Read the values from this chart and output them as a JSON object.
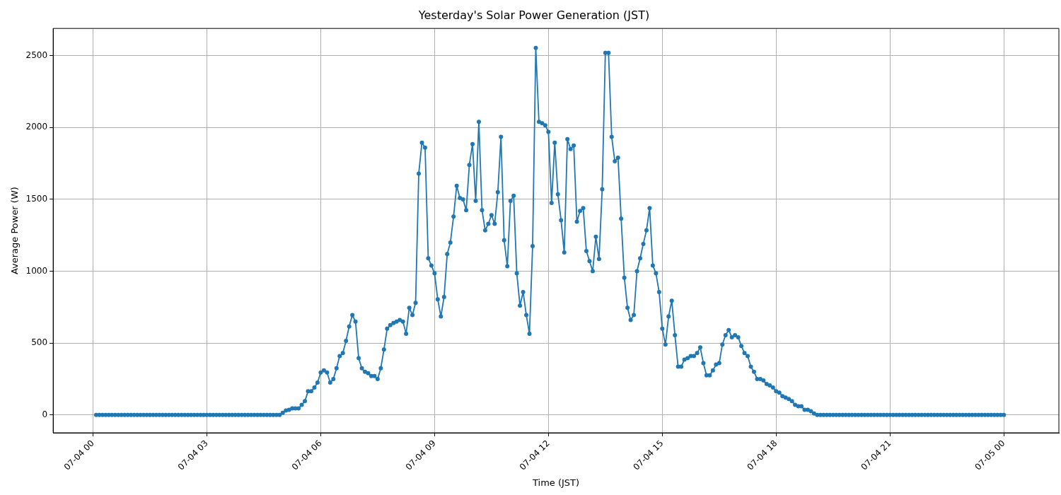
{
  "chart_data": {
    "type": "line",
    "title": "Yesterday's Solar Power Generation (JST)",
    "xlabel": "Time (JST)",
    "ylabel": "Average Power (W)",
    "x": [
      "--07-04T00:05",
      "--07-04T00:10",
      "--07-04T00:15",
      "--07-04T00:20",
      "--07-04T00:25",
      "--07-04T00:30",
      "--07-04T00:35",
      "--07-04T00:40",
      "--07-04T00:45",
      "--07-04T00:50",
      "--07-04T00:55",
      "--07-04T01:00",
      "--07-04T01:05",
      "--07-04T01:10",
      "--07-04T01:15",
      "--07-04T01:20",
      "--07-04T01:25",
      "--07-04T01:30",
      "--07-04T01:35",
      "--07-04T01:40",
      "--07-04T01:45",
      "--07-04T01:50",
      "--07-04T01:55",
      "--07-04T02:00",
      "--07-04T02:05",
      "--07-04T02:10",
      "--07-04T02:15",
      "--07-04T02:20",
      "--07-04T02:25",
      "--07-04T02:30",
      "--07-04T02:35",
      "--07-04T02:40",
      "--07-04T02:45",
      "--07-04T02:50",
      "--07-04T02:55",
      "--07-04T03:00",
      "--07-04T03:05",
      "--07-04T03:10",
      "--07-04T03:15",
      "--07-04T03:20",
      "--07-04T03:25",
      "--07-04T03:30",
      "--07-04T03:35",
      "--07-04T03:40",
      "--07-04T03:45",
      "--07-04T03:50",
      "--07-04T03:55",
      "--07-04T04:00",
      "--07-04T04:05",
      "--07-04T04:10",
      "--07-04T04:15",
      "--07-04T04:20",
      "--07-04T04:25",
      "--07-04T04:30",
      "--07-04T04:35",
      "--07-04T04:40",
      "--07-04T04:45",
      "--07-04T04:50",
      "--07-04T04:55",
      "--07-04T05:00",
      "--07-04T05:05",
      "--07-04T05:10",
      "--07-04T05:15",
      "--07-04T05:20",
      "--07-04T05:25",
      "--07-04T05:30",
      "--07-04T05:35",
      "--07-04T05:40",
      "--07-04T05:45",
      "--07-04T05:50",
      "--07-04T05:55",
      "--07-04T06:00",
      "--07-04T06:05",
      "--07-04T06:10",
      "--07-04T06:15",
      "--07-04T06:20",
      "--07-04T06:25",
      "--07-04T06:30",
      "--07-04T06:35",
      "--07-04T06:40",
      "--07-04T06:45",
      "--07-04T06:50",
      "--07-04T06:55",
      "--07-04T07:00",
      "--07-04T07:05",
      "--07-04T07:10",
      "--07-04T07:15",
      "--07-04T07:20",
      "--07-04T07:25",
      "--07-04T07:30",
      "--07-04T07:35",
      "--07-04T07:40",
      "--07-04T07:45",
      "--07-04T07:50",
      "--07-04T07:55",
      "--07-04T08:00",
      "--07-04T08:05",
      "--07-04T08:10",
      "--07-04T08:15",
      "--07-04T08:20",
      "--07-04T08:25",
      "--07-04T08:30",
      "--07-04T08:35",
      "--07-04T08:40",
      "--07-04T08:45",
      "--07-04T08:50",
      "--07-04T08:55",
      "--07-04T09:00",
      "--07-04T09:05",
      "--07-04T09:10",
      "--07-04T09:15",
      "--07-04T09:20",
      "--07-04T09:25",
      "--07-04T09:30",
      "--07-04T09:35",
      "--07-04T09:40",
      "--07-04T09:45",
      "--07-04T09:50",
      "--07-04T09:55",
      "--07-04T10:00",
      "--07-04T10:05",
      "--07-04T10:10",
      "--07-04T10:15",
      "--07-04T10:20",
      "--07-04T10:25",
      "--07-04T10:30",
      "--07-04T10:35",
      "--07-04T10:40",
      "--07-04T10:45",
      "--07-04T10:50",
      "--07-04T10:55",
      "--07-04T11:00",
      "--07-04T11:05",
      "--07-04T11:10",
      "--07-04T11:15",
      "--07-04T11:20",
      "--07-04T11:25",
      "--07-04T11:30",
      "--07-04T11:35",
      "--07-04T11:40",
      "--07-04T11:45",
      "--07-04T11:50",
      "--07-04T11:55",
      "--07-04T12:00",
      "--07-04T12:05",
      "--07-04T12:10",
      "--07-04T12:15",
      "--07-04T12:20",
      "--07-04T12:25",
      "--07-04T12:30",
      "--07-04T12:35",
      "--07-04T12:40",
      "--07-04T12:45",
      "--07-04T12:50",
      "--07-04T12:55",
      "--07-04T13:00",
      "--07-04T13:05",
      "--07-04T13:10",
      "--07-04T13:15",
      "--07-04T13:20",
      "--07-04T13:25",
      "--07-04T13:30",
      "--07-04T13:35",
      "--07-04T13:40",
      "--07-04T13:45",
      "--07-04T13:50",
      "--07-04T13:55",
      "--07-04T14:00",
      "--07-04T14:05",
      "--07-04T14:10",
      "--07-04T14:15",
      "--07-04T14:20",
      "--07-04T14:25",
      "--07-04T14:30",
      "--07-04T14:35",
      "--07-04T14:40",
      "--07-04T14:45",
      "--07-04T14:50",
      "--07-04T14:55",
      "--07-04T15:00",
      "--07-04T15:05",
      "--07-04T15:10",
      "--07-04T15:15",
      "--07-04T15:20",
      "--07-04T15:25",
      "--07-04T15:30",
      "--07-04T15:35",
      "--07-04T15:40",
      "--07-04T15:45",
      "--07-04T15:50",
      "--07-04T15:55",
      "--07-04T16:00",
      "--07-04T16:05",
      "--07-04T16:10",
      "--07-04T16:15",
      "--07-04T16:20",
      "--07-04T16:25",
      "--07-04T16:30",
      "--07-04T16:35",
      "--07-04T16:40",
      "--07-04T16:45",
      "--07-04T16:50",
      "--07-04T16:55",
      "--07-04T17:00",
      "--07-04T17:05",
      "--07-04T17:10",
      "--07-04T17:15",
      "--07-04T17:20",
      "--07-04T17:25",
      "--07-04T17:30",
      "--07-04T17:35",
      "--07-04T17:40",
      "--07-04T17:45",
      "--07-04T17:50",
      "--07-04T17:55",
      "--07-04T18:00",
      "--07-04T18:05",
      "--07-04T18:10",
      "--07-04T18:15",
      "--07-04T18:20",
      "--07-04T18:25",
      "--07-04T18:30",
      "--07-04T18:35",
      "--07-04T18:40",
      "--07-04T18:45",
      "--07-04T18:50",
      "--07-04T18:55",
      "--07-04T19:00",
      "--07-04T19:05",
      "--07-04T19:10",
      "--07-04T19:15",
      "--07-04T19:20",
      "--07-04T19:25",
      "--07-04T19:30",
      "--07-04T19:35",
      "--07-04T19:40",
      "--07-04T19:45",
      "--07-04T19:50",
      "--07-04T19:55",
      "--07-04T20:00",
      "--07-04T20:05",
      "--07-04T20:10",
      "--07-04T20:15",
      "--07-04T20:20",
      "--07-04T20:25",
      "--07-04T20:30",
      "--07-04T20:35",
      "--07-04T20:40",
      "--07-04T20:45",
      "--07-04T20:50",
      "--07-04T20:55",
      "--07-04T21:00",
      "--07-04T21:05",
      "--07-04T21:10",
      "--07-04T21:15",
      "--07-04T21:20",
      "--07-04T21:25",
      "--07-04T21:30",
      "--07-04T21:35",
      "--07-04T21:40",
      "--07-04T21:45",
      "--07-04T21:50",
      "--07-04T21:55",
      "--07-04T22:00",
      "--07-04T22:05",
      "--07-04T22:10",
      "--07-04T22:15",
      "--07-04T22:20",
      "--07-04T22:25",
      "--07-04T22:30",
      "--07-04T22:35",
      "--07-04T22:40",
      "--07-04T22:45",
      "--07-04T22:50",
      "--07-04T22:55",
      "--07-04T23:00",
      "--07-04T23:05",
      "--07-04T23:10",
      "--07-04T23:15",
      "--07-04T23:20",
      "--07-04T23:25",
      "--07-04T23:30",
      "--07-04T23:35",
      "--07-04T23:40",
      "--07-04T23:45",
      "--07-04T23:50",
      "--07-04T23:55",
      "--07-05T00:00"
    ],
    "series": [
      {
        "color": "#1f77b4",
        "values": [
          0,
          0,
          0,
          0,
          0,
          0,
          0,
          0,
          0,
          0,
          0,
          0,
          0,
          0,
          0,
          0,
          0,
          0,
          0,
          0,
          0,
          0,
          0,
          0,
          0,
          0,
          0,
          0,
          0,
          0,
          0,
          0,
          0,
          0,
          0,
          0,
          0,
          0,
          0,
          0,
          0,
          0,
          0,
          0,
          0,
          0,
          0,
          0,
          0,
          0,
          0,
          0,
          0,
          0,
          0,
          0,
          0,
          0,
          0,
          15,
          30,
          35,
          45,
          45,
          45,
          70,
          95,
          165,
          165,
          190,
          225,
          295,
          310,
          295,
          225,
          250,
          325,
          410,
          430,
          515,
          615,
          695,
          650,
          395,
          325,
          300,
          290,
          270,
          270,
          250,
          325,
          455,
          600,
          625,
          640,
          650,
          660,
          650,
          565,
          745,
          695,
          780,
          1680,
          1895,
          1860,
          1090,
          1040,
          985,
          805,
          685,
          820,
          1120,
          1200,
          1380,
          1595,
          1510,
          1500,
          1425,
          1740,
          1885,
          1490,
          2040,
          1425,
          1285,
          1330,
          1390,
          1330,
          1550,
          1935,
          1215,
          1035,
          1490,
          1525,
          985,
          760,
          855,
          695,
          565,
          1175,
          2555,
          2040,
          2030,
          2015,
          1970,
          1475,
          1895,
          1535,
          1355,
          1130,
          1920,
          1850,
          1875,
          1345,
          1420,
          1440,
          1140,
          1070,
          1000,
          1240,
          1085,
          1570,
          2520,
          2520,
          1935,
          1765,
          1790,
          1365,
          955,
          745,
          660,
          695,
          1000,
          1090,
          1190,
          1285,
          1440,
          1040,
          985,
          855,
          600,
          490,
          685,
          795,
          555,
          335,
          335,
          385,
          395,
          410,
          410,
          430,
          470,
          360,
          275,
          275,
          310,
          350,
          360,
          490,
          555,
          590,
          540,
          555,
          540,
          480,
          430,
          410,
          335,
          300,
          250,
          250,
          240,
          215,
          205,
          190,
          165,
          155,
          130,
          120,
          110,
          95,
          70,
          60,
          60,
          35,
          35,
          25,
          10,
          0,
          0,
          0,
          0,
          0,
          0,
          0,
          0,
          0,
          0,
          0,
          0,
          0,
          0,
          0,
          0,
          0,
          0,
          0,
          0,
          0,
          0,
          0,
          0,
          0,
          0,
          0,
          0,
          0,
          0,
          0,
          0,
          0,
          0,
          0,
          0,
          0,
          0,
          0,
          0,
          0,
          0,
          0,
          0,
          0,
          0,
          0,
          0,
          0,
          0,
          0,
          0,
          0,
          0,
          0,
          0,
          0,
          0,
          0,
          0
        ]
      }
    ],
    "xlim": [
      "--07-03T22:57",
      "--07-05T01:27"
    ],
    "xticks": [
      {
        "value": "--07-04T00:00",
        "label": "07-04 00"
      },
      {
        "value": "--07-04T03:00",
        "label": "07-04 03"
      },
      {
        "value": "--07-04T06:00",
        "label": "07-04 06"
      },
      {
        "value": "--07-04T09:00",
        "label": "07-04 09"
      },
      {
        "value": "--07-04T12:00",
        "label": "07-04 12"
      },
      {
        "value": "--07-04T15:00",
        "label": "07-04 15"
      },
      {
        "value": "--07-04T18:00",
        "label": "07-04 18"
      },
      {
        "value": "--07-04T21:00",
        "label": "07-04 21"
      },
      {
        "value": "--07-05T00:00",
        "label": "07-05 00"
      }
    ],
    "ylim": [
      -125,
      2690
    ],
    "yticks": [
      0,
      500,
      1000,
      1500,
      2000,
      2500
    ],
    "grid": true,
    "legend": false,
    "marker": "circle",
    "line_style": "solid"
  }
}
